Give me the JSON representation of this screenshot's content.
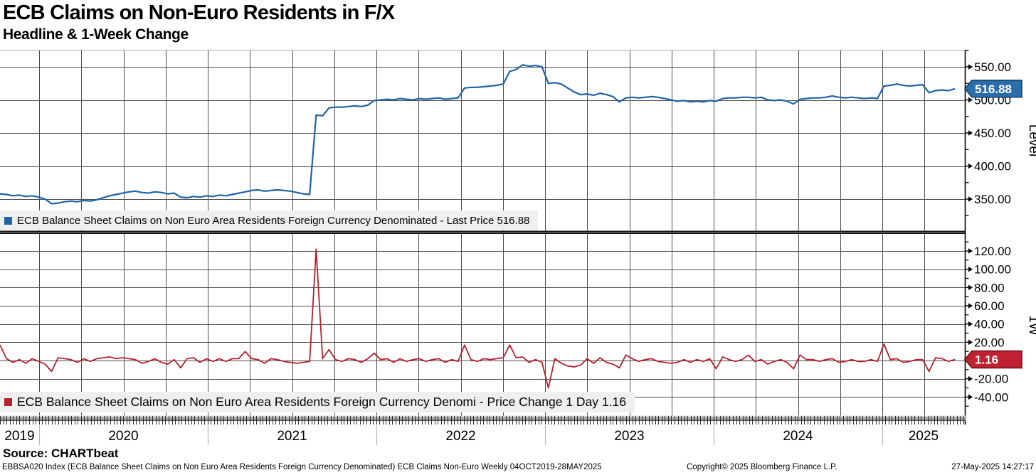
{
  "header": {
    "title": "ECB Claims on Non-Euro Residents in F/X",
    "subtitle": "Headline & 1-Week Change"
  },
  "legends": {
    "level": "ECB Balance Sheet Claims on Non Euro Area Residents Foreign Currency Denominated - Last Price 516.88",
    "change": "ECB Balance Sheet Claims on Non Euro Area Residents Foreign Currency Denomi - Price Change 1 Day 1.16"
  },
  "tags": {
    "level_value": "516.88",
    "change_value": "1.16"
  },
  "colors": {
    "level_line": "#1f63a6",
    "level_tag_fill": "#2b6da8",
    "level_tag_border": "#123f63",
    "change_line": "#b6202c",
    "change_tag_fill": "#bf2032",
    "change_tag_border": "#6b0f1a",
    "grid": "#4d4d4d",
    "axis": "#000000",
    "legend_bg": "#efefef"
  },
  "footer": {
    "source": "Source: CHARTbeat",
    "left": "EBBSA020 Index (ECB Balance Sheet Claims on Non Euro Area Residents Foreign Currency Denominated) ECB Claims Non-Euro  Weekly 04OCT2019-28MAY2025",
    "center": "Copyright© 2025 Bloomberg Finance L.P.",
    "right": "27-May-2025 14:27:17"
  },
  "chart_data": [
    {
      "type": "line",
      "panel": "level",
      "name": "ECB Balance Sheet Claims on Non Euro Area Residents Foreign Currency Denominated",
      "axis_title": "Level",
      "last_price": 516.88,
      "x_range_label": "04OCT2019-28MAY2025",
      "ylim": [
        333,
        576
      ],
      "y_ticks_major": [
        550,
        500,
        450,
        400,
        350
      ],
      "y_ticks_minor": [
        575,
        525,
        475,
        425,
        375,
        325
      ],
      "grid": true,
      "values": [
        358,
        357,
        355,
        356,
        354,
        355,
        353,
        350,
        343,
        344,
        346,
        347,
        346,
        348,
        347,
        349,
        352,
        355,
        357,
        359,
        361,
        362,
        360,
        359,
        361,
        360,
        358,
        359,
        353,
        352,
        354,
        353,
        355,
        354,
        356,
        355,
        357,
        359,
        361,
        363,
        364,
        362,
        363,
        364,
        363,
        362,
        360,
        358,
        357,
        477,
        476,
        488,
        489,
        489,
        490,
        491,
        490,
        492,
        499,
        500,
        501,
        500,
        502,
        501,
        500,
        502,
        501,
        502,
        503,
        501,
        502,
        503,
        518,
        519,
        519,
        520,
        521,
        522,
        524,
        543,
        546,
        553,
        551,
        552,
        550,
        525,
        526,
        524,
        518,
        512,
        508,
        509,
        507,
        510,
        508,
        505,
        497,
        503,
        504,
        503,
        504,
        505,
        504,
        502,
        500,
        498,
        499,
        497,
        498,
        497,
        499,
        498,
        502,
        503,
        503,
        504,
        504,
        503,
        504,
        500,
        499,
        500,
        498,
        494,
        501,
        502,
        503,
        503,
        504,
        506,
        504,
        503,
        504,
        503,
        502,
        503,
        502,
        521,
        522,
        524,
        522,
        521,
        522,
        523,
        511,
        514,
        515,
        514,
        516.88
      ]
    },
    {
      "type": "line",
      "panel": "1w_change",
      "name": "ECB Balance Sheet Claims on Non Euro Area Residents Foreign Currency Denomi - Price Change 1 Day",
      "axis_title": "1W",
      "last_value": 1.16,
      "ylim": [
        -62,
        138
      ],
      "y_ticks_major": [
        120,
        100,
        80,
        60,
        40,
        20,
        -20,
        -40
      ],
      "y_ticks_minor": [
        130,
        110,
        90,
        70,
        50,
        30,
        10,
        -10,
        -30,
        -50
      ],
      "zero_gridline": 0,
      "grid": true,
      "values": [
        17,
        2,
        -2,
        1,
        -3,
        2,
        -1,
        -4,
        -12,
        3,
        2,
        1,
        -2,
        2,
        -1,
        2,
        3,
        4,
        2,
        3,
        2,
        1,
        -3,
        -1,
        2,
        -2,
        -4,
        1,
        -8,
        2,
        3,
        -2,
        2,
        -1,
        2,
        -1,
        2,
        2,
        10,
        2,
        1,
        -3,
        2,
        1,
        -1,
        -2,
        -3,
        -2,
        -1,
        122,
        2,
        12,
        1,
        -1,
        2,
        1,
        -2,
        2,
        8,
        1,
        2,
        -2,
        2,
        -1,
        1,
        2,
        -1,
        1,
        2,
        -2,
        1,
        -1,
        17,
        1,
        -1,
        2,
        1,
        2,
        3,
        17,
        3,
        4,
        -2,
        1,
        -2,
        -30,
        2,
        -3,
        -6,
        -7,
        -5,
        2,
        -3,
        3,
        -2,
        -4,
        -8,
        6,
        2,
        -1,
        1,
        2,
        -1,
        -2,
        -3,
        -2,
        1,
        -2,
        1,
        -1,
        2,
        -9,
        4,
        1,
        -1,
        1,
        6,
        -1,
        1,
        -4,
        -1,
        1,
        -2,
        -9,
        6,
        1,
        1,
        -1,
        1,
        2,
        -2,
        -1,
        1,
        -1,
        -1,
        1,
        -1,
        18,
        1,
        2,
        -2,
        -1,
        1,
        1,
        -12,
        3,
        2,
        -1,
        1.16
      ]
    }
  ],
  "x_axis": {
    "years": [
      "2019",
      "2020",
      "2021",
      "2022",
      "2023",
      "2024",
      "2025"
    ],
    "gridline_interval": "quarterly",
    "tick_interval": "weekly"
  }
}
